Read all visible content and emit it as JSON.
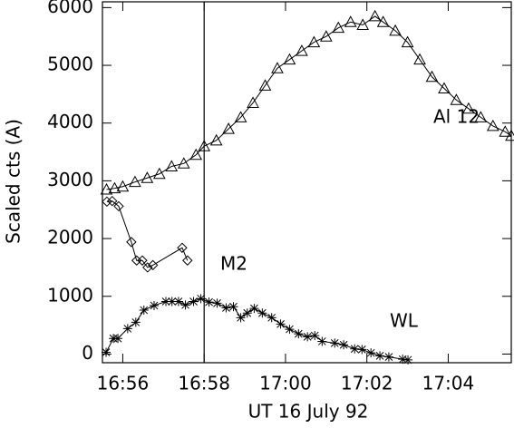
{
  "chart_data": {
    "type": "line",
    "xlabel": "UT 16 July 92",
    "ylabel": "Scaled cts (A)",
    "xlim": [
      55.5,
      65.55
    ],
    "ylim": [
      -150,
      6100
    ],
    "xticks": [
      {
        "value": 56,
        "label": "16:56"
      },
      {
        "value": 58,
        "label": "16:58"
      },
      {
        "value": 60,
        "label": "17:00"
      },
      {
        "value": 62,
        "label": "17:02"
      },
      {
        "value": 64,
        "label": "17:04"
      }
    ],
    "yticks": [
      0,
      1000,
      2000,
      3000,
      4000,
      5000,
      6000
    ],
    "vline": 58,
    "series": [
      {
        "name": "Al 12",
        "color": "#000000",
        "marker": "triangle",
        "x": [
          55.6,
          55.8,
          56.0,
          56.3,
          56.6,
          56.9,
          57.2,
          57.5,
          57.8,
          58.0,
          58.3,
          58.6,
          58.9,
          59.2,
          59.5,
          59.8,
          60.1,
          60.4,
          60.7,
          61.0,
          61.3,
          61.6,
          61.9,
          62.2,
          62.4,
          62.7,
          63.0,
          63.3,
          63.6,
          63.9,
          64.2,
          64.5,
          64.8,
          65.1,
          65.4,
          65.55
        ],
        "values": [
          2850,
          2870,
          2900,
          2980,
          3050,
          3120,
          3250,
          3300,
          3450,
          3600,
          3700,
          3900,
          4100,
          4350,
          4650,
          4950,
          5100,
          5250,
          5400,
          5500,
          5650,
          5750,
          5700,
          5850,
          5750,
          5600,
          5400,
          5100,
          4800,
          4600,
          4400,
          4250,
          4100,
          3950,
          3850,
          3780
        ]
      },
      {
        "name": "M2",
        "color": "#000000",
        "marker": "diamond",
        "x": [
          55.61,
          55.74,
          55.9,
          56.21,
          56.34,
          56.48,
          56.61,
          56.74,
          57.46,
          57.59
        ],
        "values": [
          2640,
          2650,
          2560,
          1940,
          1620,
          1620,
          1500,
          1540,
          1840,
          1620
        ]
      },
      {
        "name": "WL",
        "color": "#000000",
        "marker": "star",
        "x": [
          55.59,
          55.77,
          55.88,
          56.12,
          56.32,
          56.52,
          56.77,
          57.06,
          57.21,
          57.37,
          57.54,
          57.74,
          57.92,
          58.12,
          58.32,
          58.54,
          58.72,
          58.9,
          59.06,
          59.23,
          59.43,
          59.66,
          59.88,
          60.1,
          60.32,
          60.54,
          60.72,
          60.9,
          61.21,
          61.43,
          61.7,
          61.88,
          62.1,
          62.32,
          62.54,
          62.88,
          63.01
        ],
        "values": [
          30,
          270,
          270,
          440,
          550,
          760,
          840,
          910,
          910,
          910,
          850,
          910,
          960,
          900,
          880,
          800,
          820,
          630,
          710,
          790,
          710,
          630,
          520,
          430,
          350,
          300,
          320,
          220,
          190,
          160,
          90,
          80,
          20,
          -30,
          -50,
          -90,
          -100
        ]
      }
    ]
  }
}
